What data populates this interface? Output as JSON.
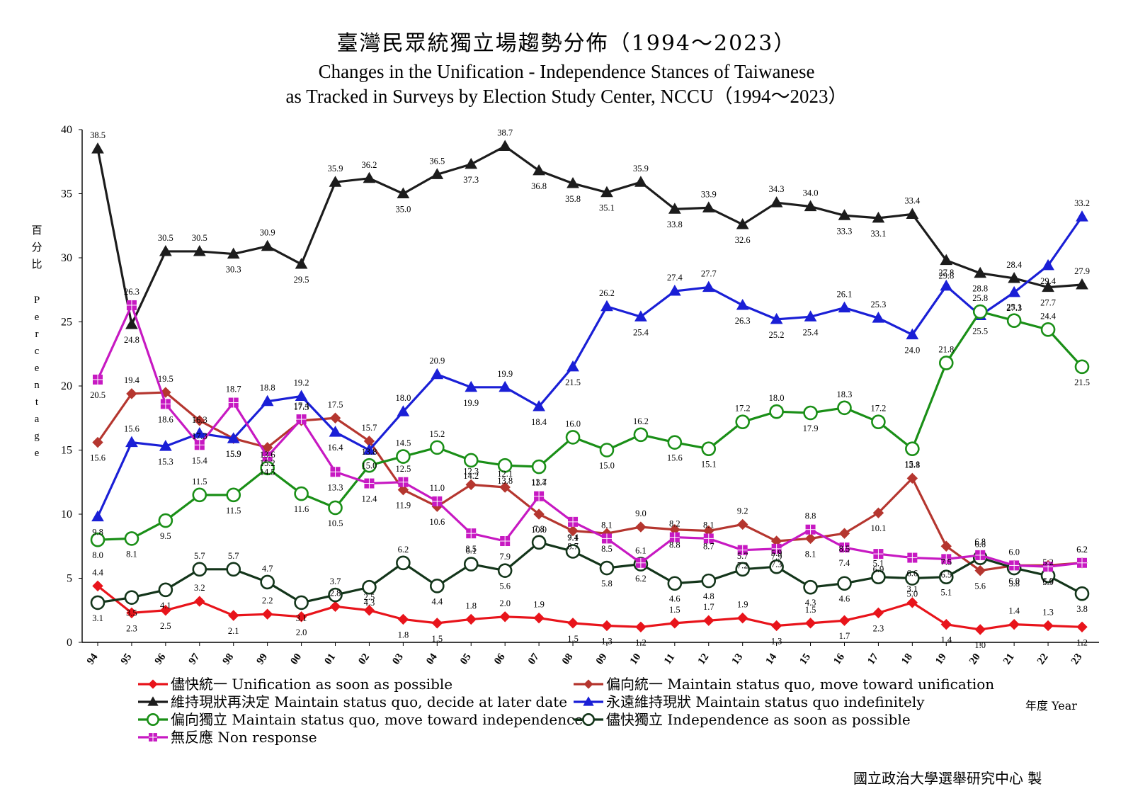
{
  "titles": {
    "zh": "臺灣民眾統獨立場趨勢分佈（1994～2023）",
    "en_line1": "Changes in the Unification - Independence Stances of Taiwanese",
    "en_line2": "as Tracked in Surveys by Election Study Center, NCCU（1994～2023）"
  },
  "y_axis_label_zh": [
    "百",
    "分",
    "比"
  ],
  "y_axis_label_en": [
    "P",
    "e",
    "r",
    "c",
    "e",
    "n",
    "t",
    "a",
    "g",
    "e"
  ],
  "x_axis_label": "年度 Year",
  "credit": "國立政治大學選舉研究中心 製",
  "chart_data": {
    "type": "line",
    "x": [
      "94",
      "95",
      "96",
      "97",
      "98",
      "99",
      "00",
      "01",
      "02",
      "03",
      "04",
      "05",
      "06",
      "07",
      "08",
      "09",
      "10",
      "11",
      "12",
      "13",
      "14",
      "15",
      "16",
      "17",
      "18",
      "19",
      "20",
      "21",
      "22",
      "23"
    ],
    "ylim": [
      0,
      40
    ],
    "yticks": [
      0,
      5,
      10,
      15,
      20,
      25,
      30,
      35,
      40
    ],
    "grid": false,
    "legend_position": "bottom",
    "series": [
      {
        "name": "儘快統一 Unification as soon as possible",
        "color": "#e8141b",
        "marker": "diamond",
        "values": [
          4.4,
          2.3,
          2.5,
          3.2,
          2.1,
          2.2,
          2.0,
          2.8,
          2.5,
          1.8,
          1.5,
          1.8,
          2.0,
          1.9,
          1.5,
          1.3,
          1.2,
          1.5,
          1.7,
          1.9,
          1.3,
          1.5,
          1.7,
          2.3,
          3.1,
          1.4,
          1.0,
          1.4,
          1.3,
          1.2
        ],
        "labels": [
          "4.4",
          "2.3",
          "2.5",
          "3.2",
          "2.1",
          "2.2",
          "2.0",
          "2.8",
          "2.5",
          "1.8",
          "1.5",
          "1.8",
          "2.0",
          "1.9",
          "1.5",
          "1.3",
          "1.2",
          "1.5",
          "1.7",
          "1.9",
          "1.3",
          "1.5",
          "1.7",
          "2.3",
          "3.1",
          "1.4",
          "1.0",
          "1.4",
          "1.3",
          "1.2"
        ]
      },
      {
        "name": "偏向統一 Maintain status quo, move toward unification",
        "color": "#b5362f",
        "marker": "diamond",
        "values": [
          15.6,
          19.4,
          19.5,
          17.3,
          15.9,
          15.2,
          17.3,
          17.5,
          15.7,
          11.9,
          10.6,
          12.3,
          12.1,
          10.0,
          8.7,
          8.5,
          9.0,
          8.8,
          8.7,
          9.2,
          7.9,
          8.1,
          8.5,
          10.1,
          12.8,
          7.5,
          5.6,
          6.0,
          6.0,
          6.2
        ],
        "labels": [
          "15.6",
          "19.4",
          "19.5",
          "17.3",
          "15.9",
          "15.2",
          "17.3",
          "17.5",
          "15.7",
          "11.9",
          "10.6",
          "12.3",
          "12.1",
          "10.0",
          "8.7",
          "8.5",
          "9.0",
          "8.8",
          "8.7",
          "9.2",
          "7.9",
          "8.1",
          "8.5",
          "10.1",
          "12.8",
          "7.5",
          "5.6",
          "6.0",
          "6.0",
          "6.2"
        ]
      },
      {
        "name": "維持現狀再決定 Maintain status quo, decide at later date",
        "color": "#1c1c1c",
        "marker": "triangle",
        "values": [
          38.5,
          24.8,
          30.5,
          30.5,
          30.3,
          30.9,
          29.5,
          35.9,
          36.2,
          35.0,
          36.5,
          37.3,
          38.7,
          36.8,
          35.8,
          35.1,
          35.9,
          33.8,
          33.9,
          32.6,
          34.3,
          34.0,
          33.3,
          33.1,
          33.4,
          29.8,
          28.8,
          28.4,
          27.7,
          27.9
        ],
        "labels": [
          "38.5",
          "24.8",
          "30.5",
          "30.5",
          "30.3",
          "30.9",
          "29.5",
          "35.9",
          "36.2",
          "35.0",
          "36.5",
          "37.3",
          "38.7",
          "36.8",
          "35.8",
          "35.1",
          "35.9",
          "33.8",
          "33.9",
          "32.6",
          "34.3",
          "34.0",
          "33.3",
          "33.1",
          "33.4",
          "29.8",
          "28.8",
          "28.4",
          "27.7",
          "27.9"
        ]
      },
      {
        "name": "永遠維持現狀 Maintain status quo indefinitely",
        "color": "#1a1fd6",
        "marker": "triangle",
        "values": [
          9.8,
          15.6,
          15.3,
          16.3,
          15.9,
          18.8,
          19.2,
          16.4,
          15.0,
          18.0,
          20.9,
          19.9,
          19.9,
          18.4,
          21.5,
          26.2,
          25.4,
          27.4,
          27.7,
          26.3,
          25.2,
          25.4,
          26.1,
          25.3,
          24.0,
          27.8,
          25.5,
          27.3,
          29.4,
          33.2
        ],
        "labels": [
          "9.8",
          "15.6",
          "15.3",
          "16.3",
          "15.9",
          "18.8",
          "19.2",
          "16.4",
          "15.0",
          "18.0",
          "20.9",
          "19.9",
          "19.9",
          "18.4",
          "21.5",
          "26.2",
          "25.4",
          "27.4",
          "27.7",
          "26.3",
          "25.2",
          "25.4",
          "26.1",
          "25.3",
          "24.0",
          "27.8",
          "25.5",
          "27.3",
          "29.4",
          "33.2"
        ]
      },
      {
        "name": "偏向獨立 Maintain status quo, move toward independence",
        "color": "#1a8f17",
        "marker": "circle",
        "values": [
          8.0,
          8.1,
          9.5,
          11.5,
          11.5,
          13.6,
          11.6,
          10.5,
          13.8,
          14.5,
          15.2,
          14.2,
          13.8,
          13.7,
          16.0,
          15.0,
          16.2,
          15.6,
          15.1,
          17.2,
          18.0,
          17.9,
          18.3,
          17.2,
          15.1,
          21.8,
          25.8,
          25.1,
          24.4,
          21.5
        ],
        "labels": [
          "8.0",
          "8.1",
          "9.5",
          "11.5",
          "11.5",
          "13.6",
          "11.6",
          "10.5",
          "13.8",
          "14.5",
          "15.2",
          "14.2",
          "13.8",
          "13.7",
          "16.0",
          "15.0",
          "16.2",
          "15.6",
          "15.1",
          "17.2",
          "18.0",
          "17.9",
          "18.3",
          "17.2",
          "15.1",
          "21.8",
          "25.8",
          "25.1",
          "24.4",
          "21.5"
        ]
      },
      {
        "name": "儘快獨立 Independence as soon as possible",
        "color": "#13351a",
        "marker": "circle",
        "values": [
          3.1,
          3.5,
          4.1,
          5.7,
          5.7,
          4.7,
          3.1,
          3.7,
          4.3,
          6.2,
          4.4,
          6.1,
          5.6,
          7.8,
          7.1,
          5.8,
          6.1,
          4.6,
          4.8,
          5.7,
          5.9,
          4.3,
          4.6,
          5.1,
          5.0,
          5.1,
          6.6,
          5.8,
          5.2,
          3.8
        ],
        "labels": [
          "3.1",
          "3.5",
          "4.1",
          "5.7",
          "5.7",
          "4.7",
          "3.1",
          "3.7",
          "4.3",
          "6.2",
          "4.4",
          "6.1",
          "5.6",
          "7.8",
          "7.1",
          "5.8",
          "6.1",
          "4.6",
          "4.8",
          "5.7",
          "5.9",
          "4.3",
          "4.6",
          "5.1",
          "5.0",
          "5.1",
          "6.6",
          "5.8",
          "5.2",
          "3.8"
        ]
      },
      {
        "name": "無反應 Non response",
        "color": "#c719c2",
        "marker": "square",
        "values": [
          20.5,
          26.3,
          18.6,
          15.4,
          18.7,
          14.5,
          17.4,
          13.3,
          12.4,
          12.5,
          11.0,
          8.5,
          7.9,
          11.4,
          9.4,
          8.1,
          6.2,
          8.2,
          8.1,
          7.2,
          7.3,
          8.8,
          7.4,
          6.9,
          6.6,
          6.5,
          6.8,
          6.0,
          5.9,
          6.2
        ],
        "labels": [
          "20.5",
          "26.3",
          "18.6",
          "15.4",
          "18.7",
          "14.5",
          "17.4",
          "13.3",
          "12.4",
          "12.5",
          "11.0",
          "8.5",
          "7.9",
          "11.4",
          "9.4",
          "8.1",
          "6.2",
          "8.2",
          "8.1",
          "7.2",
          "7.3",
          "8.8",
          "7.4",
          "6.9",
          "6.6",
          "6.5",
          "6.8",
          "6.0",
          "5.9",
          "6.2"
        ]
      }
    ]
  }
}
